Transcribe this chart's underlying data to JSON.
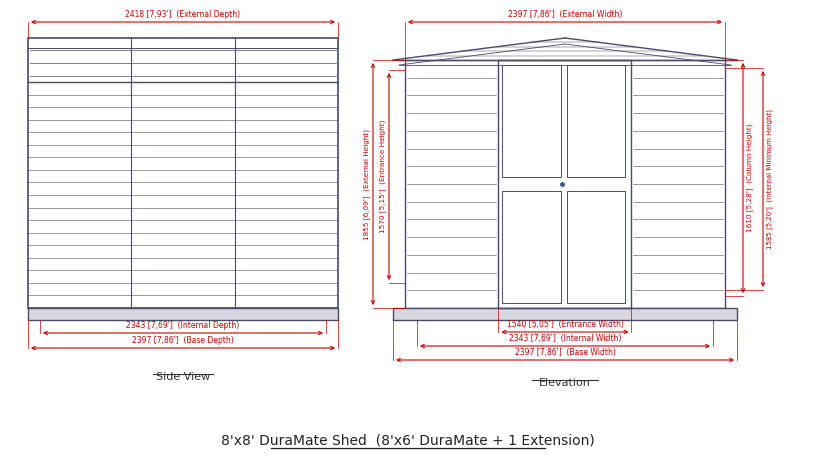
{
  "title": "8'x8' DuraMate Shed  (8'x6' DuraMate + 1 Extension)",
  "background_color": "#ffffff",
  "line_color": "#4a4a6a",
  "dim_color": "#cc0000",
  "text_color": "#4a4a6a",
  "side_view_label": "Side View",
  "elevation_label": "Elevation",
  "side_dim_top": "2418 [7,93']  (External Depth)",
  "side_dim_bot1": "2343 [7,69']  (Internal Depth)",
  "side_dim_bot2": "2397 [7,86']  (Base Depth)",
  "elev_dim_top": "2397 [7,86']  (External Width)",
  "elev_dim_ext_h": "1855 [6,09']  (External Height)",
  "elev_dim_ent_h": "1570 [5,15']  (Entrance Height)",
  "elev_dim_col_h": "1610 [5,28']  (Column Height)",
  "elev_dim_int_min_h": "1585 [5,20']  (Internal Minimum Height)",
  "elev_dim_ent_w": "1540 [5,05']  (Entrance Width)",
  "elev_dim_int_w": "2343 [7,69']  (Internal Width)",
  "elev_dim_base_w": "2397 [7,86']  (Base Width)"
}
